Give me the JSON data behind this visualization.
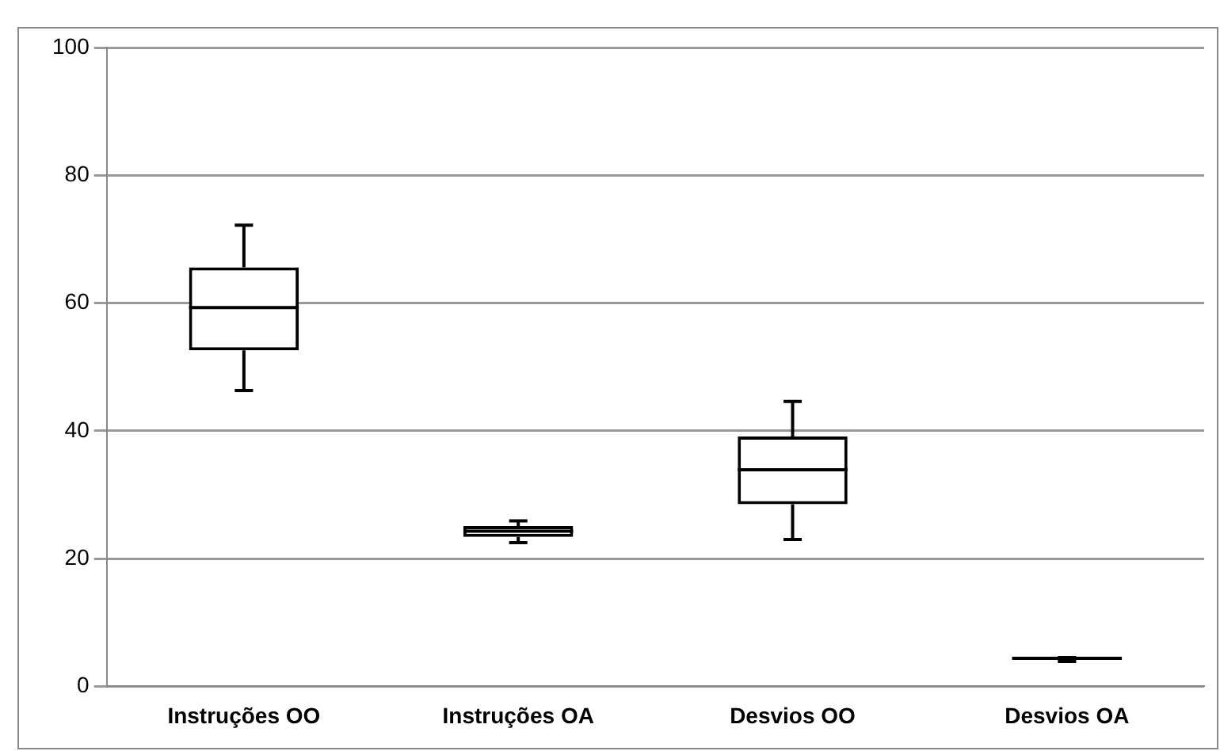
{
  "chart_data": {
    "type": "box",
    "categories": [
      "Instruções OO",
      "Instruções OA",
      "Desvios OO",
      "Desvios OA"
    ],
    "boxes": [
      {
        "low": 46.3,
        "q1": 52.6,
        "median": 59.3,
        "q3": 65.6,
        "high": 72.2
      },
      {
        "low": 22.5,
        "q1": 23.4,
        "median": 24.3,
        "q3": 25.1,
        "high": 25.9
      },
      {
        "low": 23.0,
        "q1": 28.5,
        "median": 33.9,
        "q3": 39.1,
        "high": 44.6
      },
      {
        "low": 3.9,
        "q1": 4.3,
        "median": 4.4,
        "q3": 4.5,
        "high": 4.5
      }
    ],
    "color": "#000000",
    "ylim": [
      0,
      100
    ],
    "yticks": [
      0,
      20,
      40,
      60,
      80,
      100
    ],
    "grid": "y",
    "legend": false
  }
}
